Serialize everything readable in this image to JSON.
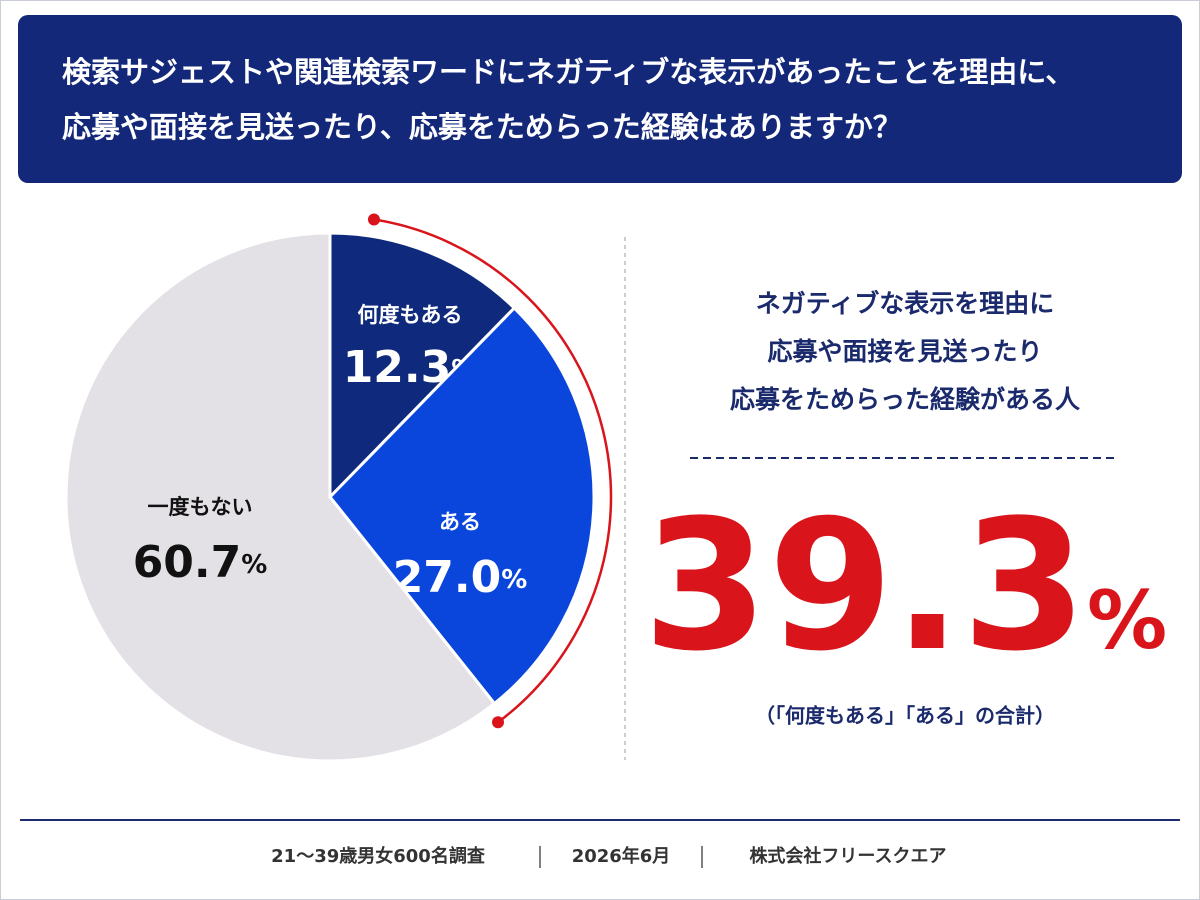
{
  "chart_data": {
    "type": "pie",
    "title": [
      "検索サジェストや関連検索ワードにネガティブな表示があったことを理由に、",
      "応募や面接を見送ったり、応募をためらった経験はありますか？"
    ],
    "categories": [
      "何度もある",
      "ある",
      "一度もない"
    ],
    "values": [
      12.3,
      27.0,
      60.7
    ],
    "value_labels": [
      "12.3%",
      "27.0%",
      "60.7%"
    ],
    "colors": [
      "#0f2a7c",
      "#0a46dc",
      "#e3e1e6"
    ],
    "callout": {
      "lines": [
        "ネガティブな表示を理由に",
        "応募や面接を見送ったり",
        "応募をためらった経験がある人"
      ],
      "value": 39.3,
      "value_label": "39.3%",
      "note": "（「何度もある」「ある」の合計）",
      "color": "#d9141b"
    },
    "footer": [
      "21～39歳男女600名調査",
      "2026年6月",
      "株式会社フリースクエア"
    ]
  }
}
